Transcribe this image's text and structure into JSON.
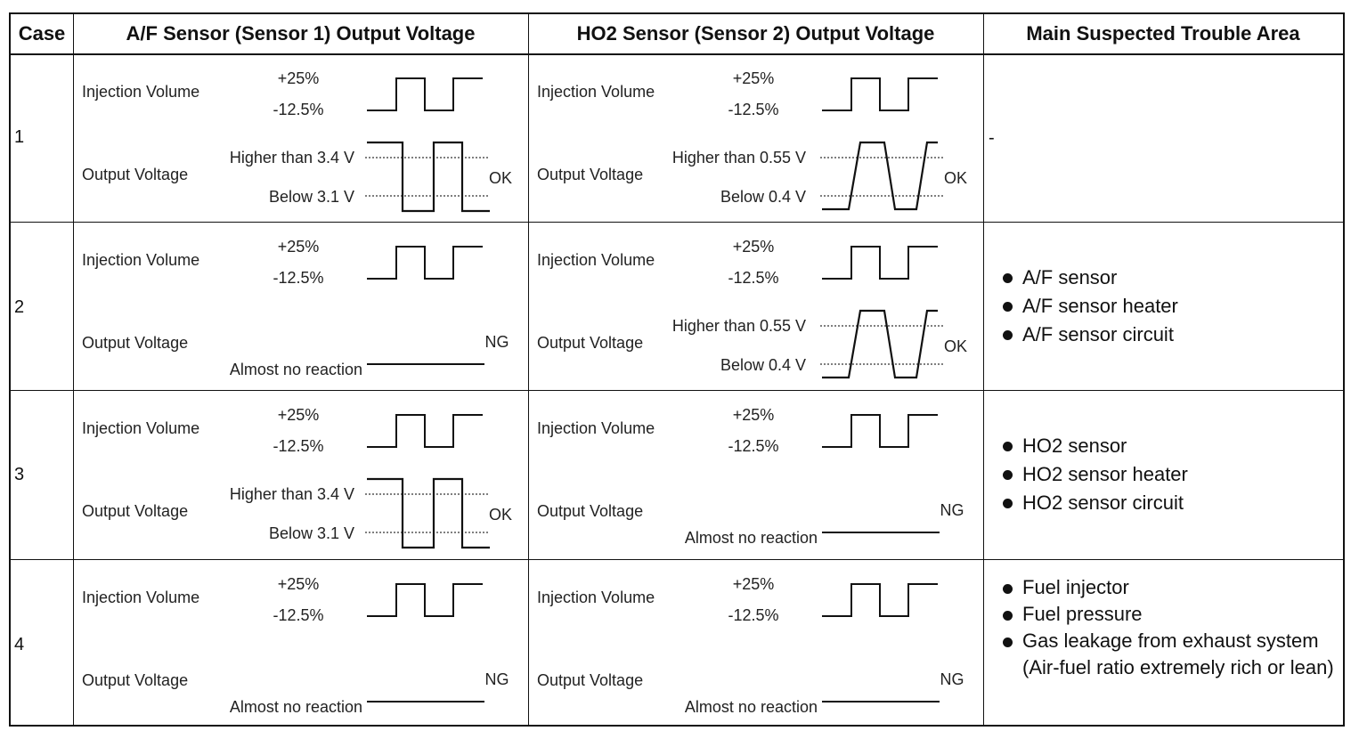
{
  "headers": {
    "case": "Case",
    "af": "A/F Sensor (Sensor 1) Output Voltage",
    "ho2": "HO2 Sensor (Sensor 2) Output Voltage",
    "trouble": "Main Suspected Trouble Area"
  },
  "labels": {
    "injection_volume": "Injection Volume",
    "output_voltage": "Output Voltage",
    "plus25": "+25%",
    "minus12": "-12.5%",
    "af_high": "Higher than 3.4 V",
    "af_low": "Below 3.1 V",
    "ho2_high": "Higher than 0.55 V",
    "ho2_low": "Below 0.4 V",
    "no_reaction": "Almost no reaction",
    "ok": "OK",
    "ng": "NG"
  },
  "rows": [
    {
      "case": "1",
      "af_result": "OK",
      "ho2_result": "OK",
      "trouble": [],
      "trouble_dash": "-"
    },
    {
      "case": "2",
      "af_result": "NG",
      "ho2_result": "OK",
      "trouble": [
        "A/F sensor",
        "A/F sensor heater",
        "A/F sensor circuit"
      ]
    },
    {
      "case": "3",
      "af_result": "OK",
      "ho2_result": "NG",
      "trouble": [
        "HO2 sensor",
        "HO2 sensor heater",
        "HO2 sensor circuit"
      ]
    },
    {
      "case": "4",
      "af_result": "NG",
      "ho2_result": "NG",
      "trouble": [
        "Fuel injector",
        "Fuel pressure",
        "Gas leakage from exhaust system (Air-fuel ratio extremely rich or lean)"
      ]
    }
  ]
}
